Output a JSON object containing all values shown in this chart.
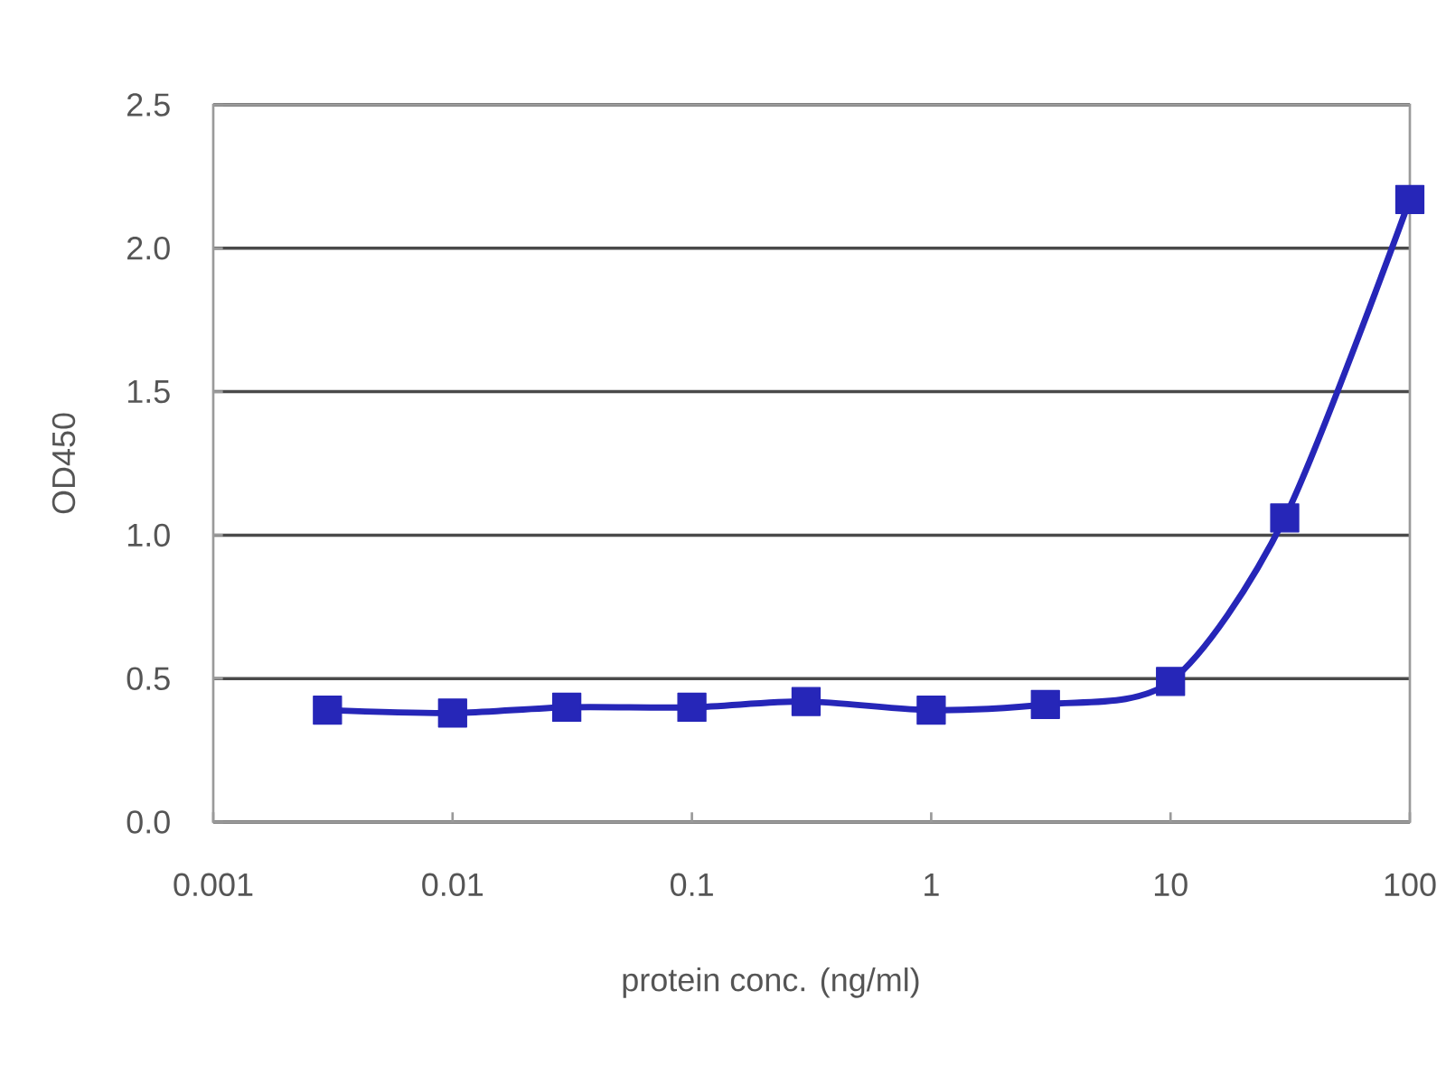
{
  "chart_data": {
    "type": "line",
    "xlabel": "protein conc. (ng/ml)",
    "ylabel": "OD450",
    "x": [
      0.003,
      0.01,
      0.03,
      0.1,
      0.3,
      1,
      3,
      10,
      30,
      100
    ],
    "series": [
      {
        "color": "#2626b8",
        "values": [
          0.39,
          0.38,
          0.4,
          0.4,
          0.42,
          0.39,
          0.41,
          0.49,
          1.06,
          2.17
        ]
      }
    ],
    "xlim": [
      0.001,
      100
    ],
    "ylim": [
      0,
      2.5
    ],
    "xticks": [
      0.001,
      0.01,
      0.1,
      1,
      10,
      100
    ],
    "yticks": [
      {
        "value": 0,
        "label": "0.0"
      },
      0.5,
      {
        "value": 1,
        "label": "1.0"
      },
      1.5,
      {
        "value": 2,
        "label": "2.0"
      },
      2.5
    ],
    "log": "x",
    "grid": "y",
    "marker": "square",
    "line_style": "solid"
  }
}
